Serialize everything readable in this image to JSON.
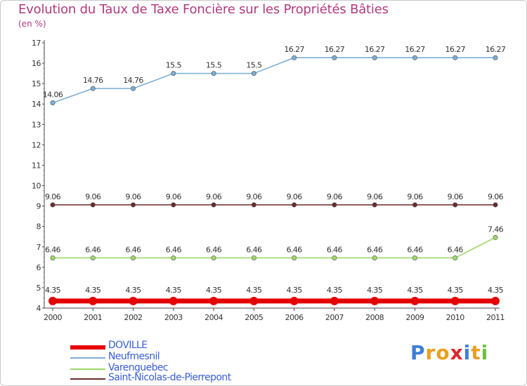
{
  "title": "Evolution du Taux de Taxe Foncière sur les Propriétés Bâties",
  "unit": "(en %)",
  "logo": {
    "letters": [
      "P",
      "r",
      "o",
      "x",
      "i",
      "t",
      "i"
    ],
    "colors": [
      "#3d7fd6",
      "#e8a020",
      "#e8a020",
      "#d9282e",
      "#3d7fd6",
      "#e8a020",
      "#6cbf3a"
    ]
  },
  "chart_data": {
    "type": "line",
    "x": [
      "2000",
      "2001",
      "2002",
      "2003",
      "2004",
      "2005",
      "2006",
      "2007",
      "2008",
      "2009",
      "2010",
      "2011"
    ],
    "ylim": [
      4,
      17
    ],
    "yticks": [
      "4",
      "5",
      "6",
      "7",
      "8",
      "9",
      "10",
      "11",
      "12",
      "13",
      "14",
      "15",
      "16",
      "17"
    ],
    "grid": false,
    "legend_position": "bottom-left",
    "series": [
      {
        "name": "DOVILLE",
        "color": "#e50000",
        "values": [
          4.35,
          4.35,
          4.35,
          4.35,
          4.35,
          4.35,
          4.35,
          4.35,
          4.35,
          4.35,
          4.35,
          4.35
        ],
        "labels": [
          "4.35",
          "4.35",
          "4.35",
          "4.35",
          "4.35",
          "4.35",
          "4.35",
          "4.35",
          "4.35",
          "4.35",
          "4.35",
          "4.35"
        ]
      },
      {
        "name": "Neufmesnil",
        "color": "#7aaed6",
        "values": [
          14.06,
          14.76,
          14.76,
          15.5,
          15.5,
          15.5,
          16.27,
          16.27,
          16.27,
          16.27,
          16.27,
          16.27
        ],
        "labels": [
          "14.06",
          "14.76",
          "14.76",
          "15.5",
          "15.5",
          "15.5",
          "16.27",
          "16.27",
          "16.27",
          "16.27",
          "16.27",
          "16.27"
        ]
      },
      {
        "name": "Varenguebec",
        "color": "#9ed86a",
        "values": [
          6.46,
          6.46,
          6.46,
          6.46,
          6.46,
          6.46,
          6.46,
          6.46,
          6.46,
          6.46,
          6.46,
          7.46
        ],
        "labels": [
          "6.46",
          "6.46",
          "6.46",
          "6.46",
          "6.46",
          "6.46",
          "6.46",
          "6.46",
          "6.46",
          "6.46",
          "6.46",
          "7.46"
        ]
      },
      {
        "name": "Saint-Nicolas-de-Pierrepont",
        "color": "#6b2a2a",
        "values": [
          9.06,
          9.06,
          9.06,
          9.06,
          9.06,
          9.06,
          9.06,
          9.06,
          9.06,
          9.06,
          9.06,
          9.06
        ],
        "labels": [
          "9.06",
          "9.06",
          "9.06",
          "9.06",
          "9.06",
          "9.06",
          "9.06",
          "9.06",
          "9.06",
          "9.06",
          "9.06",
          "9.06"
        ]
      }
    ]
  }
}
